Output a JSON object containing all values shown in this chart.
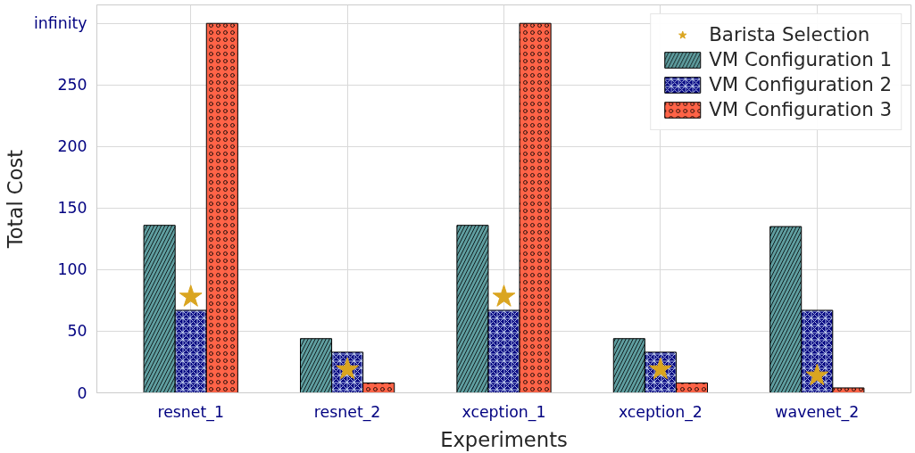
{
  "chart_data": {
    "type": "bar",
    "xlabel": "Experiments",
    "ylabel": "Total Cost",
    "categories": [
      "resnet_1",
      "resnet_2",
      "xception_1",
      "xception_2",
      "wavenet_2"
    ],
    "ylim": [
      0,
      315
    ],
    "yticks": [
      0,
      50,
      100,
      150,
      200,
      250,
      {
        "value": 300,
        "label": "infinity"
      }
    ],
    "grid": true,
    "legend": "top right",
    "series": [
      {
        "name": "Barista Selection",
        "type": "scatter",
        "marker": "star",
        "color": "#daa520",
        "x": [
          "resnet_1",
          "resnet_2",
          "xception_1",
          "xception_2",
          "wavenet_2"
        ],
        "values": [
          78,
          19,
          78,
          19,
          14
        ]
      },
      {
        "name": "VM Configuration 1",
        "color": "#5f9ea0",
        "values": [
          136,
          44,
          136,
          44,
          135
        ]
      },
      {
        "name": "VM Configuration 2",
        "color": "#000080",
        "values": [
          67,
          33,
          67,
          33,
          67
        ]
      },
      {
        "name": "VM Configuration 3",
        "color": "#ff6347",
        "values": [
          300,
          8,
          300,
          8,
          4
        ]
      }
    ]
  }
}
